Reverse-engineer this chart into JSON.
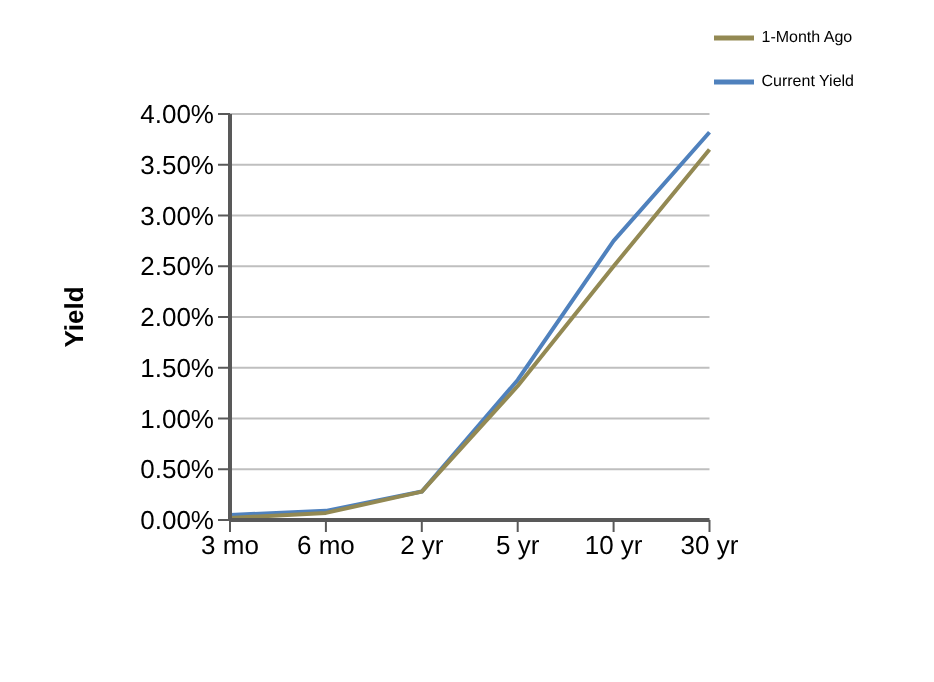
{
  "chart_data": {
    "type": "line",
    "ylabel": "Yield",
    "categories": [
      "3 mo",
      "6 mo",
      "2 yr",
      "5 yr",
      "10 yr",
      "30 yr"
    ],
    "series": [
      {
        "name": "Current Yield",
        "color": "#4f81bd",
        "values": [
          0.05,
          0.09,
          0.28,
          1.38,
          2.75,
          3.82
        ]
      },
      {
        "name": "1-Month Ago",
        "color": "#938953",
        "values": [
          0.02,
          0.07,
          0.28,
          1.32,
          2.5,
          3.65
        ]
      }
    ],
    "ylim": [
      0,
      4
    ],
    "yticks": [
      {
        "value": 0,
        "label": "0.00%"
      },
      {
        "value": 0.5,
        "label": "0.50%"
      },
      {
        "value": 1,
        "label": "1.00%"
      },
      {
        "value": 1.5,
        "label": "1.50%"
      },
      {
        "value": 2,
        "label": "2.00%"
      },
      {
        "value": 2.5,
        "label": "2.50%"
      },
      {
        "value": 3,
        "label": "3.00%"
      },
      {
        "value": 3.5,
        "label": "3.50%"
      },
      {
        "value": 4,
        "label": "4.00%"
      }
    ],
    "grid": "y",
    "legend": "top right",
    "marker": "none",
    "line_style": "solid"
  }
}
